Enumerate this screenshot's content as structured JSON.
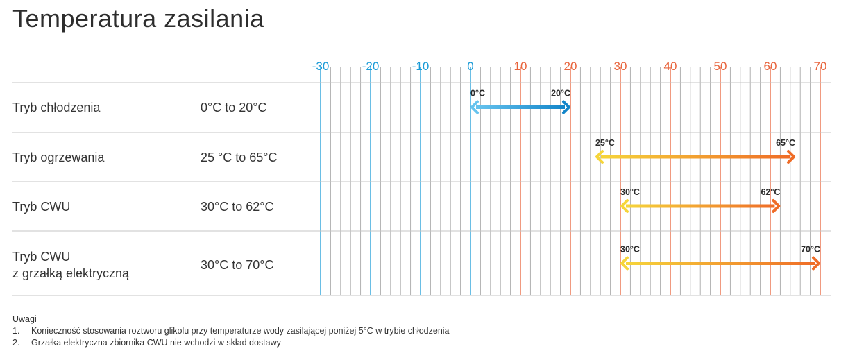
{
  "title": "Temperatura zasilania",
  "colors": {
    "cold_axis": "#1a9bd7",
    "warm_axis": "#e8643c",
    "grid": "#a9a9a9",
    "row_line": "#c4c4c4",
    "blue_start": "#66c3ee",
    "blue_end": "#1385c9",
    "warm_start": "#f6d53a",
    "warm_end": "#ef6c27"
  },
  "chart_data": {
    "type": "range-bar",
    "x_ticks": [
      -30,
      -20,
      -10,
      0,
      10,
      20,
      30,
      40,
      50,
      60,
      70
    ],
    "xlim": [
      -30,
      70
    ],
    "minor_step": 2,
    "rows": [
      {
        "label": [
          "Tryb chłodzenia"
        ],
        "range_text": "0°C to 20°C",
        "start": 0,
        "end": 20,
        "start_label": "0°C",
        "end_label": "20°C",
        "palette": "blue"
      },
      {
        "label": [
          "Tryb ogrzewania"
        ],
        "range_text": "25 °C to 65°C",
        "start": 25,
        "end": 65,
        "start_label": "25°C",
        "end_label": "65°C",
        "palette": "warm"
      },
      {
        "label": [
          "Tryb CWU"
        ],
        "range_text": "30°C to 62°C",
        "start": 30,
        "end": 62,
        "start_label": "30°C",
        "end_label": "62°C",
        "palette": "warm"
      },
      {
        "label": [
          "Tryb CWU",
          "z grzałką elektryczną"
        ],
        "range_text": "30°C to 70°C",
        "start": 30,
        "end": 70,
        "start_label": "30°C",
        "end_label": "70°C",
        "palette": "warm"
      }
    ]
  },
  "notes": {
    "heading": "Uwagi",
    "items": [
      {
        "num": "1.",
        "text": "Konieczność stosowania roztworu glikolu przy temperaturze wody zasilającej poniżej 5°C w trybie chłodzenia"
      },
      {
        "num": "2.",
        "text": "Grzałka elektryczna zbiornika CWU nie wchodzi w skład dostawy"
      }
    ]
  }
}
